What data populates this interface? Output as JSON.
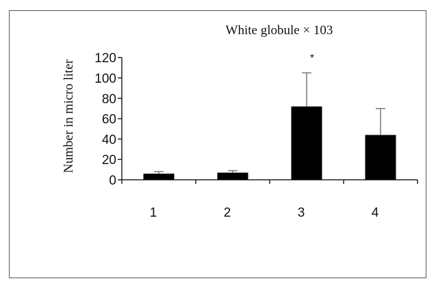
{
  "chart_data": {
    "type": "bar",
    "title": "White globule × 103",
    "ylabel": "Number in micro liter",
    "xlabel": "",
    "categories": [
      "1",
      "2",
      "3",
      "4"
    ],
    "values": [
      6,
      7,
      72,
      44
    ],
    "error_upper": [
      8,
      9,
      105,
      70
    ],
    "significance": [
      "",
      "",
      "*",
      ""
    ],
    "yticks": [
      "0",
      "20",
      "40",
      "60",
      "80",
      "100",
      "120"
    ],
    "ylim": [
      0,
      120
    ],
    "bar_color": "#000000",
    "error_bar_color": "#777777",
    "grid": false
  }
}
